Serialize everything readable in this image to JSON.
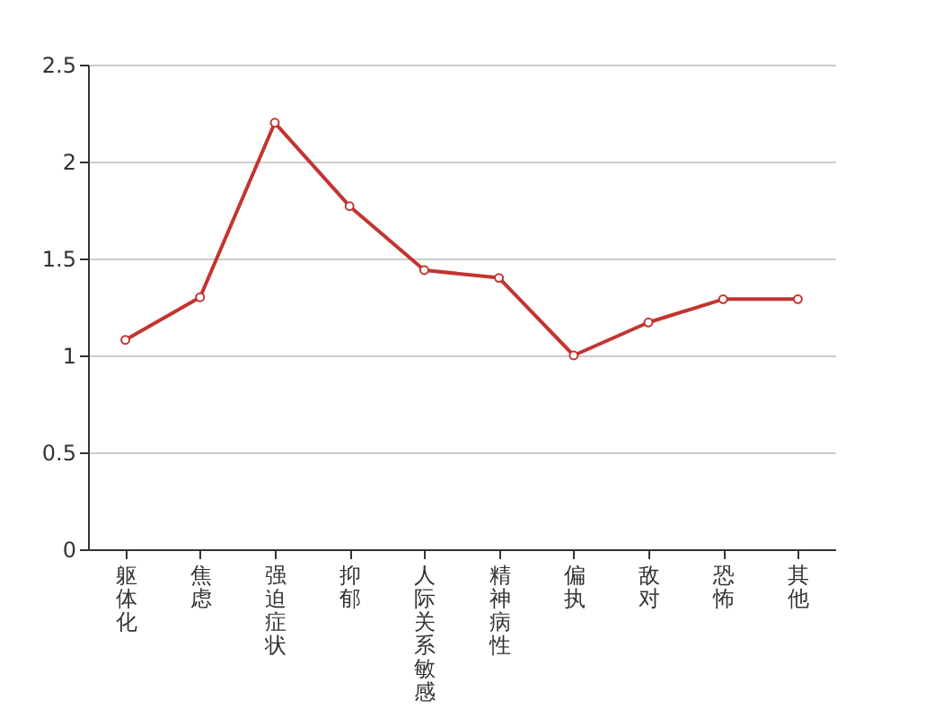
{
  "chart_data": {
    "type": "line",
    "categories": [
      "躯体化",
      "焦虑",
      "强迫症状",
      "抑郁",
      "人际关系敏感",
      "精神病性",
      "偏执",
      "敌对",
      "恐怖",
      "其他"
    ],
    "series": [
      {
        "color": "#c23531",
        "values": [
          1.08,
          1.3,
          2.2,
          1.77,
          1.44,
          1.4,
          1.0,
          1.17,
          1.29,
          1.29
        ]
      }
    ],
    "ylim": [
      0,
      2.5
    ],
    "yticks": [
      0,
      0.5,
      1,
      1.5,
      2,
      2.5
    ],
    "grid": "y",
    "marker": "circle",
    "line_style": "solid"
  }
}
